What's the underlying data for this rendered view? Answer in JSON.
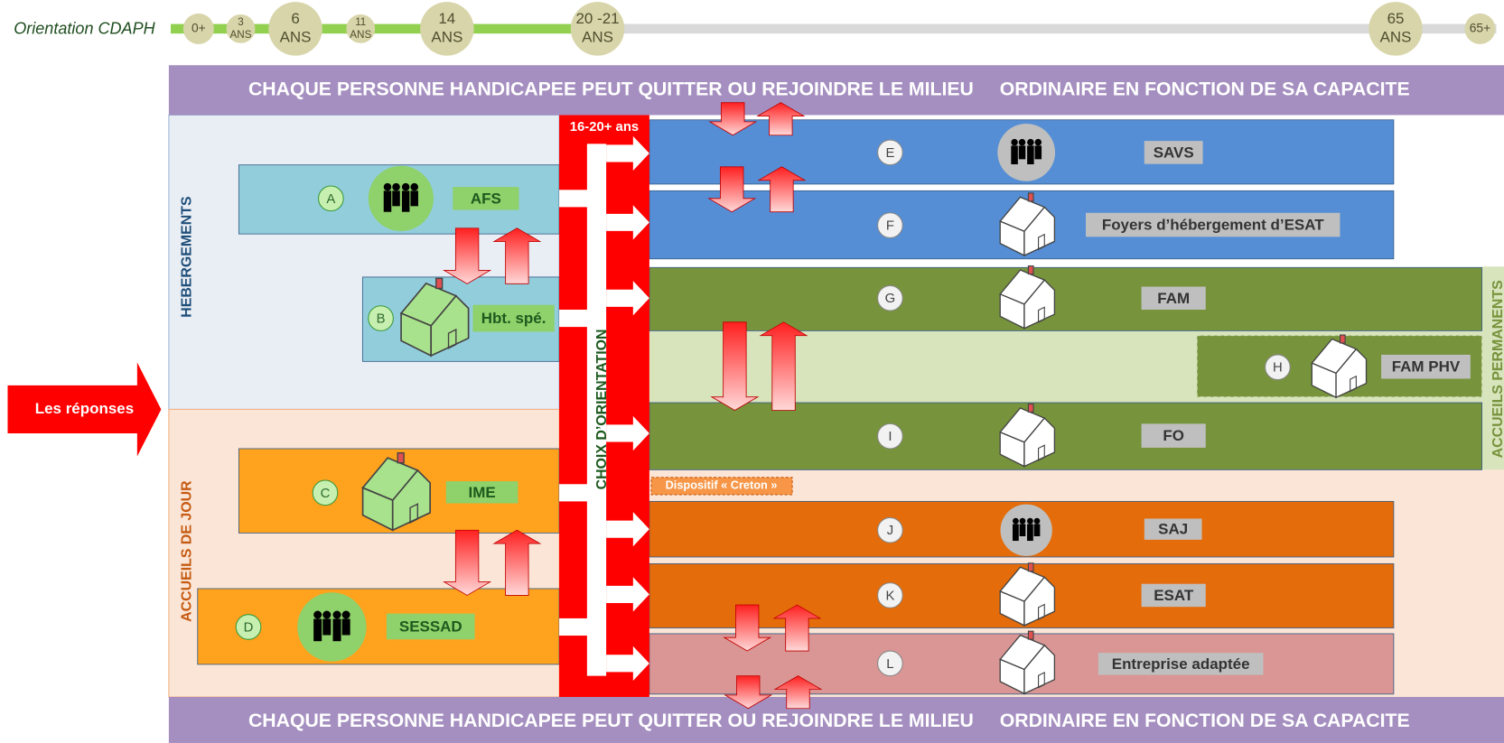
{
  "timeline": {
    "label": "Orientation CDAPH",
    "ages": [
      [
        "0+"
      ],
      [
        "3",
        "ANS"
      ],
      [
        "6",
        "ANS"
      ],
      [
        "11",
        "ANS"
      ],
      [
        "14",
        "ANS"
      ],
      [
        "20 -21",
        "ANS"
      ],
      [
        "65",
        "ANS"
      ],
      [
        "65+"
      ]
    ]
  },
  "banner_top": [
    "CHAQUE PERSONNE HANDICAPEE PEUT QUITTER OU REJOINDRE LE MILIEU",
    "ORDINAIRE EN FONCTION DE SA CAPACITE"
  ],
  "banner_bottom": [
    "CHAQUE PERSONNE HANDICAPEE PEUT QUITTER OU REJOINDRE LE MILIEU",
    "ORDINAIRE EN FONCTION DE SA CAPACITE"
  ],
  "sections": {
    "hebergements": "HEBERGEMENTS",
    "accueils_de_jour": "ACCUEILS DE JOUR",
    "accueils_permanents": "ACCUEILS PERMANENTS"
  },
  "responses": "Les réponses",
  "orientation": {
    "age": "16-20+ ans",
    "label": "CHOIX D’ORIENTATION"
  },
  "creton": "Dispositif « Creton »",
  "services": [
    {
      "letter": "A",
      "label": "AFS"
    },
    {
      "letter": "B",
      "label": "Hbt. spé."
    },
    {
      "letter": "C",
      "label": "IME"
    },
    {
      "letter": "D",
      "label": "SESSAD"
    },
    {
      "letter": "E",
      "label": "SAVS"
    },
    {
      "letter": "F",
      "label": "Foyers d’hébergement d’ESAT"
    },
    {
      "letter": "G",
      "label": "FAM"
    },
    {
      "letter": "H",
      "label": "FAM PHV"
    },
    {
      "letter": "I",
      "label": "FO"
    },
    {
      "letter": "J",
      "label": "SAJ"
    },
    {
      "letter": "K",
      "label": "ESAT"
    },
    {
      "letter": "L",
      "label": "Entreprise adaptée"
    }
  ]
}
